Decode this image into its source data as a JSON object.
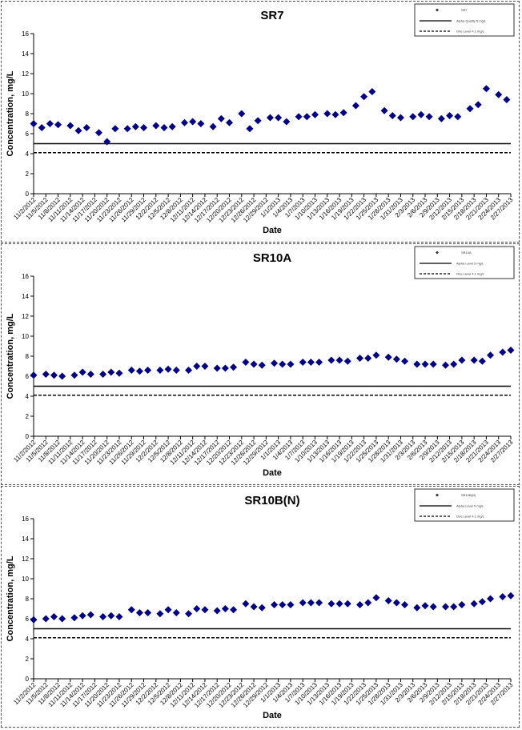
{
  "colors": {
    "marker": "#00008b",
    "line": "#000000",
    "background": "#ffffff"
  },
  "x_tick_labels": [
    "11/2/2012",
    "11/5/2012",
    "11/8/2012",
    "11/11/2012",
    "11/14/2012",
    "11/17/2012",
    "11/20/2012",
    "11/23/2012",
    "11/26/2012",
    "11/29/2012",
    "12/2/2012",
    "12/5/2012",
    "12/8/2012",
    "12/11/2012",
    "12/14/2012",
    "12/17/2012",
    "12/20/2012",
    "12/23/2012",
    "12/26/2012",
    "12/29/2012",
    "1/1/2013",
    "1/4/2013",
    "1/7/2013",
    "1/10/2013",
    "1/13/2013",
    "1/16/2013",
    "1/19/2013",
    "1/22/2013",
    "1/25/2013",
    "1/28/2013",
    "1/31/2013",
    "2/3/2013",
    "2/6/2013",
    "2/9/2013",
    "2/12/2013",
    "2/15/2013",
    "2/18/2013",
    "2/21/2013",
    "2/24/2013",
    "2/27/2013"
  ],
  "chart_data": [
    {
      "type": "scatter",
      "title": "SR7",
      "xlabel": "Date",
      "ylabel": "Concentration, mg/L",
      "ylim": [
        0,
        16
      ],
      "yticks": [
        0,
        2,
        4,
        6,
        8,
        10,
        12,
        14,
        16
      ],
      "xlim": [
        "11/2/2012",
        "2/27/2013"
      ],
      "legend_position": "top-right",
      "legend": [
        "SR7",
        "Alpha Quality 5 mg/L",
        "One Level 4.1 mg/L"
      ],
      "hlines": [
        {
          "value": 5.0,
          "style": "solid"
        },
        {
          "value": 4.1,
          "style": "dashed"
        }
      ],
      "series": [
        {
          "x": [
            "11/2/2012",
            "11/4/2012",
            "11/6/2012",
            "11/8/2012",
            "11/11/2012",
            "11/13/2012",
            "11/15/2012",
            "11/18/2012",
            "11/20/2012",
            "11/22/2012",
            "11/25/2012",
            "11/27/2012",
            "11/29/2012",
            "12/2/2012",
            "12/4/2012",
            "12/6/2012",
            "12/9/2012",
            "12/11/2012",
            "12/13/2012",
            "12/16/2012",
            "12/18/2012",
            "12/20/2012",
            "12/23/2012",
            "12/25/2012",
            "12/27/2012",
            "12/30/2012",
            "1/1/2013",
            "1/3/2013",
            "1/6/2013",
            "1/8/2013",
            "1/10/2013",
            "1/13/2013",
            "1/15/2013",
            "1/17/2013",
            "1/20/2013",
            "1/22/2013",
            "1/24/2013",
            "1/27/2013",
            "1/29/2013",
            "1/31/2013",
            "2/3/2013",
            "2/5/2013",
            "2/7/2013",
            "2/10/2013",
            "2/12/2013",
            "2/14/2013",
            "2/17/2013",
            "2/19/2013",
            "2/21/2013",
            "2/24/2013",
            "2/26/2013"
          ],
          "y": [
            7.0,
            6.6,
            7.0,
            6.9,
            6.8,
            6.3,
            6.6,
            6.1,
            5.2,
            6.5,
            6.5,
            6.7,
            6.6,
            6.8,
            6.6,
            6.7,
            7.1,
            7.2,
            7.0,
            6.7,
            7.5,
            7.1,
            8.0,
            6.5,
            7.3,
            7.6,
            7.6,
            7.2,
            7.7,
            7.7,
            7.9,
            8.0,
            7.9,
            8.1,
            8.8,
            9.7,
            10.2,
            8.3,
            7.8,
            7.6,
            7.7,
            7.9,
            7.7,
            7.5,
            7.8,
            7.7,
            8.5,
            8.9,
            10.5,
            9.9,
            9.4
          ]
        }
      ]
    },
    {
      "type": "scatter",
      "title": "SR10A",
      "xlabel": "Date",
      "ylabel": "Concentration, mg/L",
      "ylim": [
        0,
        16
      ],
      "yticks": [
        0,
        2,
        4,
        6,
        8,
        10,
        12,
        14,
        16
      ],
      "xlim": [
        "11/2/2012",
        "2/27/2013"
      ],
      "legend_position": "top-right",
      "legend": [
        "SR10A",
        "Alpha Level 5 mg/L",
        "One Level 4.1 mg/L"
      ],
      "hlines": [
        {
          "value": 5.0,
          "style": "solid"
        },
        {
          "value": 4.1,
          "style": "dashed"
        }
      ],
      "series": [
        {
          "x": [
            "11/2/2012",
            "11/5/2012",
            "11/7/2012",
            "11/9/2012",
            "11/12/2012",
            "11/14/2012",
            "11/16/2012",
            "11/19/2012",
            "11/21/2012",
            "11/23/2012",
            "11/26/2012",
            "11/28/2012",
            "11/30/2012",
            "12/3/2012",
            "12/5/2012",
            "12/7/2012",
            "12/10/2012",
            "12/12/2012",
            "12/14/2012",
            "12/17/2012",
            "12/19/2012",
            "12/21/2012",
            "12/24/2012",
            "12/26/2012",
            "12/28/2012",
            "12/31/2012",
            "1/2/2013",
            "1/4/2013",
            "1/7/2013",
            "1/9/2013",
            "1/11/2013",
            "1/14/2013",
            "1/16/2013",
            "1/18/2013",
            "1/21/2013",
            "1/23/2013",
            "1/25/2013",
            "1/28/2013",
            "1/30/2013",
            "2/1/2013",
            "2/4/2013",
            "2/6/2013",
            "2/8/2013",
            "2/11/2013",
            "2/13/2013",
            "2/15/2013",
            "2/18/2013",
            "2/20/2013",
            "2/22/2013",
            "2/25/2013",
            "2/27/2013"
          ],
          "y": [
            6.1,
            6.2,
            6.1,
            6.0,
            6.1,
            6.4,
            6.2,
            6.2,
            6.4,
            6.3,
            6.6,
            6.5,
            6.6,
            6.6,
            6.7,
            6.6,
            6.6,
            7.0,
            7.0,
            6.8,
            6.8,
            6.9,
            7.4,
            7.2,
            7.1,
            7.3,
            7.2,
            7.2,
            7.4,
            7.4,
            7.4,
            7.6,
            7.6,
            7.5,
            7.8,
            7.8,
            8.1,
            7.9,
            7.7,
            7.5,
            7.2,
            7.2,
            7.2,
            7.1,
            7.2,
            7.6,
            7.6,
            7.5,
            8.1,
            8.4,
            8.6
          ]
        }
      ]
    },
    {
      "type": "scatter",
      "title": "SR10B(N)",
      "xlabel": "Date",
      "ylabel": "Concentration, mg/L",
      "ylim": [
        0,
        16
      ],
      "yticks": [
        0,
        2,
        4,
        6,
        8,
        10,
        12,
        14,
        16
      ],
      "xlim": [
        "11/2/2012",
        "2/27/2013"
      ],
      "legend_position": "top-right",
      "legend": [
        "SR10B(N)",
        "Alpha Level 5 mg/L",
        "One Level 4.1 mg/L"
      ],
      "hlines": [
        {
          "value": 5.0,
          "style": "solid"
        },
        {
          "value": 4.1,
          "style": "dashed"
        }
      ],
      "series": [
        {
          "x": [
            "11/2/2012",
            "11/5/2012",
            "11/7/2012",
            "11/9/2012",
            "11/12/2012",
            "11/14/2012",
            "11/16/2012",
            "11/19/2012",
            "11/21/2012",
            "11/23/2012",
            "11/26/2012",
            "11/28/2012",
            "11/30/2012",
            "12/3/2012",
            "12/5/2012",
            "12/7/2012",
            "12/10/2012",
            "12/12/2012",
            "12/14/2012",
            "12/17/2012",
            "12/19/2012",
            "12/21/2012",
            "12/24/2012",
            "12/26/2012",
            "12/28/2012",
            "12/31/2012",
            "1/2/2013",
            "1/4/2013",
            "1/7/2013",
            "1/9/2013",
            "1/11/2013",
            "1/14/2013",
            "1/16/2013",
            "1/18/2013",
            "1/21/2013",
            "1/23/2013",
            "1/25/2013",
            "1/28/2013",
            "1/30/2013",
            "2/1/2013",
            "2/4/2013",
            "2/6/2013",
            "2/8/2013",
            "2/11/2013",
            "2/13/2013",
            "2/15/2013",
            "2/18/2013",
            "2/20/2013",
            "2/22/2013",
            "2/25/2013",
            "2/27/2013"
          ],
          "y": [
            5.9,
            6.0,
            6.2,
            6.0,
            6.1,
            6.3,
            6.4,
            6.2,
            6.3,
            6.2,
            6.9,
            6.6,
            6.6,
            6.5,
            6.9,
            6.6,
            6.5,
            7.0,
            6.9,
            6.8,
            7.0,
            6.9,
            7.5,
            7.2,
            7.1,
            7.4,
            7.4,
            7.4,
            7.6,
            7.6,
            7.6,
            7.5,
            7.5,
            7.5,
            7.4,
            7.6,
            8.1,
            7.8,
            7.6,
            7.4,
            7.1,
            7.3,
            7.2,
            7.2,
            7.2,
            7.4,
            7.5,
            7.7,
            8.0,
            8.2,
            8.3
          ]
        }
      ]
    }
  ]
}
